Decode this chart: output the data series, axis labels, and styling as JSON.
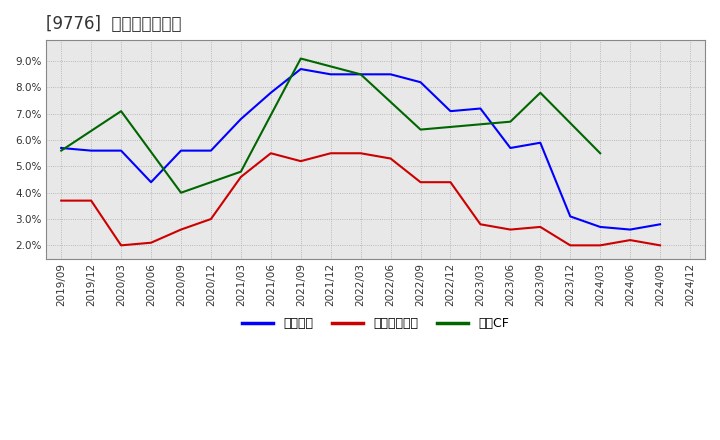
{
  "title": "[9776]  マージンの推移",
  "x_labels": [
    "2019/09",
    "2019/12",
    "2020/03",
    "2020/06",
    "2020/09",
    "2020/12",
    "2021/03",
    "2021/06",
    "2021/09",
    "2021/12",
    "2022/03",
    "2022/06",
    "2022/09",
    "2022/12",
    "2023/03",
    "2023/06",
    "2023/09",
    "2023/12",
    "2024/03",
    "2024/06",
    "2024/09",
    "2024/12"
  ],
  "blue_values": [
    5.7,
    5.6,
    5.6,
    4.4,
    5.6,
    5.6,
    6.8,
    7.8,
    8.7,
    8.5,
    8.5,
    8.5,
    8.2,
    7.1,
    7.2,
    5.7,
    5.9,
    3.1,
    2.7,
    2.6,
    2.8,
    null
  ],
  "red_values": [
    3.7,
    3.7,
    2.0,
    2.1,
    2.6,
    3.0,
    4.6,
    5.5,
    5.2,
    5.5,
    5.5,
    5.3,
    4.4,
    4.4,
    2.8,
    2.6,
    2.7,
    2.0,
    2.0,
    2.2,
    2.0,
    null
  ],
  "green_values": [
    5.6,
    null,
    7.1,
    null,
    4.0,
    null,
    4.8,
    null,
    9.1,
    null,
    8.5,
    null,
    6.4,
    6.5,
    null,
    6.7,
    7.8,
    null,
    5.5,
    null,
    null,
    null
  ],
  "ylim": [
    1.5,
    9.8
  ],
  "yticks": [
    2.0,
    3.0,
    4.0,
    5.0,
    6.0,
    7.0,
    8.0,
    9.0
  ],
  "blue_color": "#0000ff",
  "red_color": "#cc0000",
  "green_color": "#006600",
  "plot_bg_color": "#e8e8e8",
  "fig_bg_color": "#ffffff",
  "legend_labels": [
    "経常利益",
    "当期経常利益",
    "営業CF"
  ],
  "title_fontsize": 12,
  "line_width": 1.5,
  "grid_color": "#aaaaaa",
  "tick_label_size": 7.5
}
